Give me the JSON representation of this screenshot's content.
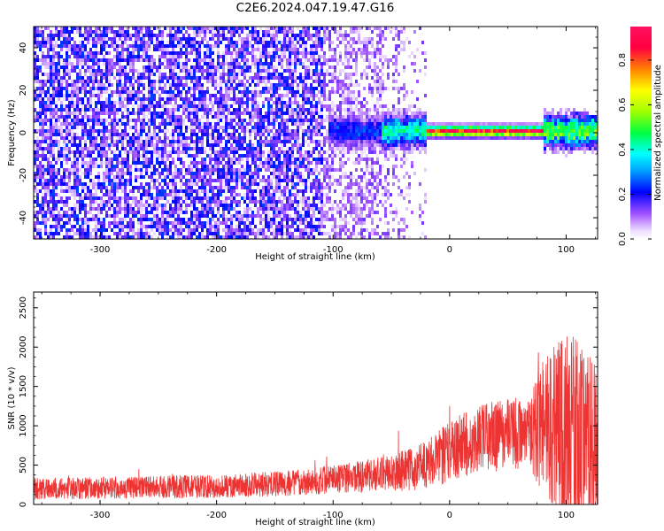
{
  "title": "C2E6.2024.047.19.47.G16",
  "chart_data": [
    {
      "type": "heatmap",
      "xlabel": "Height of straight line (km)",
      "ylabel": "Frequency (Hz)",
      "xlim": [
        -357,
        127
      ],
      "ylim": [
        -50,
        50
      ],
      "xticks": [
        -300,
        -200,
        -100,
        0,
        100
      ],
      "yticks": [
        -40,
        -20,
        0,
        20,
        40
      ],
      "grid": false,
      "colorbar": {
        "label": "Normalized spectral amplitude",
        "range": [
          0,
          0.95
        ],
        "ticks": [
          "0.0",
          "0.2",
          "0.4",
          "0.6",
          "0.8"
        ],
        "colormap": "rainbow"
      },
      "features": {
        "noise_region_x": [
          -357,
          -20
        ],
        "carrier_line_x": [
          -105,
          127
        ],
        "carrier_frequency": 1.5,
        "peak_amplitude_x": [
          -20,
          80
        ]
      }
    },
    {
      "type": "line",
      "xlabel": "Height of straight line (km)",
      "ylabel": "SNR (10 * v/v)",
      "xlim": [
        -357,
        127
      ],
      "ylim": [
        0,
        2700
      ],
      "xticks": [
        -300,
        -200,
        -100,
        0,
        100
      ],
      "yticks": [
        0,
        500,
        1000,
        1500,
        2000,
        2500
      ],
      "grid": false,
      "series": [
        {
          "color": "#ee3333",
          "profile": [
            {
              "x": -357,
              "mean": 200,
              "spread": 140
            },
            {
              "x": -300,
              "mean": 210,
              "spread": 140
            },
            {
              "x": -200,
              "mean": 230,
              "spread": 150
            },
            {
              "x": -150,
              "mean": 260,
              "spread": 160
            },
            {
              "x": -100,
              "mean": 320,
              "spread": 180
            },
            {
              "x": -60,
              "mean": 380,
              "spread": 220
            },
            {
              "x": -30,
              "mean": 450,
              "spread": 280
            },
            {
              "x": -10,
              "mean": 580,
              "spread": 360
            },
            {
              "x": 10,
              "mean": 760,
              "spread": 420
            },
            {
              "x": 30,
              "mean": 850,
              "spread": 440
            },
            {
              "x": 50,
              "mean": 880,
              "spread": 460
            },
            {
              "x": 70,
              "mean": 900,
              "spread": 500
            },
            {
              "x": 80,
              "mean": 950,
              "spread": 900
            },
            {
              "x": 100,
              "mean": 900,
              "spread": 1300
            },
            {
              "x": 127,
              "mean": 800,
              "spread": 1100
            }
          ]
        }
      ]
    }
  ]
}
